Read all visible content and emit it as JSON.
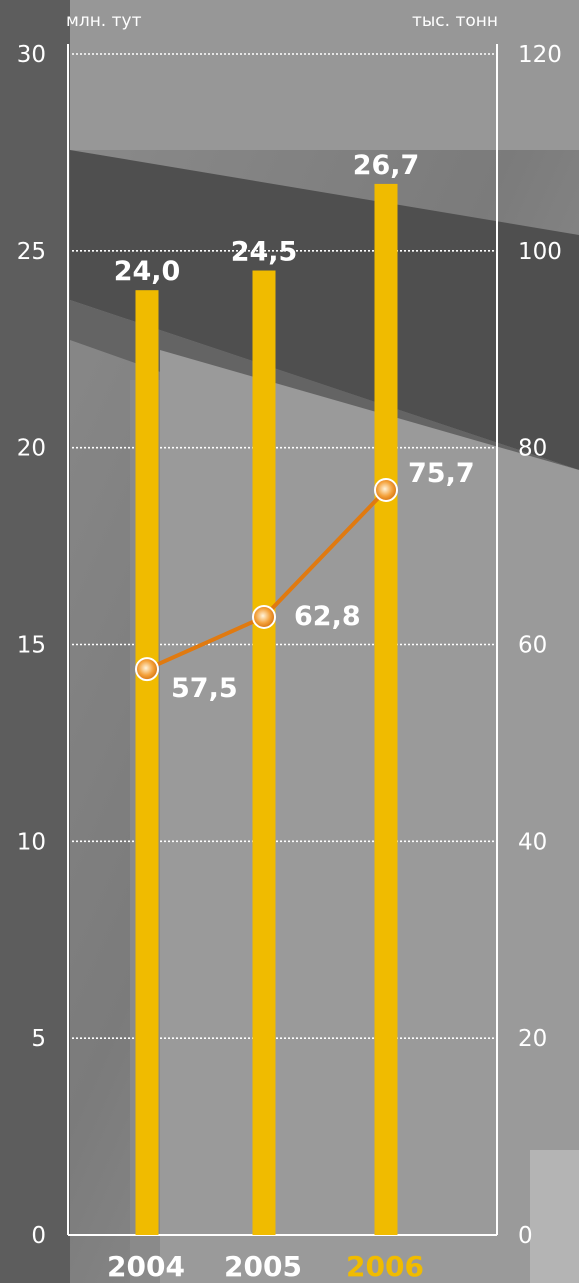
{
  "chart_data": {
    "type": "bar",
    "categories": [
      "2004",
      "2005",
      "2006"
    ],
    "highlight_category": "2006",
    "series": [
      {
        "type": "bar",
        "axis": "left",
        "values": [
          24.0,
          24.5,
          26.7
        ],
        "labels": [
          "24,0",
          "24,5",
          "26,7"
        ],
        "color": "#f0bb00"
      },
      {
        "type": "line",
        "axis": "right",
        "values": [
          57.5,
          62.8,
          75.7
        ],
        "labels": [
          "57,5",
          "62,8",
          "75,7"
        ],
        "color": "#e07a10"
      }
    ],
    "y_left": {
      "unit": "млн. тут",
      "ylim": [
        0,
        30
      ],
      "ticks": [
        "0",
        "5",
        "10",
        "15",
        "20",
        "25",
        "30"
      ]
    },
    "y_right": {
      "unit": "тыс. тонн",
      "ylim": [
        0,
        120
      ],
      "ticks": [
        "0",
        "20",
        "40",
        "60",
        "80",
        "100",
        "120"
      ]
    },
    "grid": true,
    "colors": {
      "bar": "#f0bb00",
      "line": "#e07a10",
      "highlight_year": "#f0bb00",
      "text": "#ffffff"
    }
  }
}
